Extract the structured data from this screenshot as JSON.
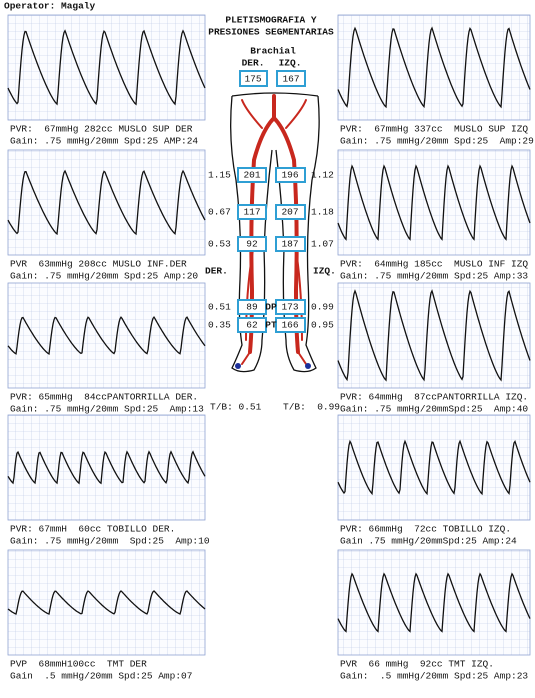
{
  "operator": "Operator: Magaly",
  "title": {
    "line1": "PLETISMOGRAFIA Y",
    "line2": "PRESIONES SEGMENTARIAS"
  },
  "brachial": {
    "label": "Brachial",
    "der_label": "DER.",
    "izq_label": "IZQ.",
    "der": "175",
    "izq": "167"
  },
  "pressures": [
    {
      "left_index": "1.15",
      "der": "201",
      "izq": "196",
      "right_index": "1.12"
    },
    {
      "left_index": "0.67",
      "der": "117",
      "izq": "207",
      "right_index": "1.18"
    },
    {
      "left_index": "0.53",
      "der": "92",
      "izq": "187",
      "right_index": "1.07"
    },
    {
      "left_index": "0.51",
      "der": "89",
      "mid": "DP",
      "izq": "173",
      "right_index": "0.99"
    },
    {
      "left_index": "0.35",
      "der": "62",
      "mid": "PT",
      "izq": "166",
      "right_index": "0.95"
    }
  ],
  "side_labels": {
    "der": "DER.",
    "izq": "IZQ."
  },
  "tb": {
    "left": "T/B: 0.51",
    "right": "T/B:  0.99"
  },
  "panels": {
    "left": [
      {
        "line1": "PVR:  67mmHg 282cc MUSLO SUP DER",
        "line2": "Gain: .75 mmHg/20mm Spd:25 AMP:24"
      },
      {
        "line1": "PVR  63mmHg 208cc MUSLO INF.DER",
        "line2": "Gain: .75 mmHg/20mm Spd:25 Amp:20"
      },
      {
        "line1": "PVR: 65mmHg  84ccPANTORRILLA DER.",
        "line2": "Gain: .75 mmHg/20mm Spd:25  Amp:13"
      },
      {
        "line1": "PVR: 67mmH  60cc TOBILLO DER.",
        "line2": "Gain: .75 mmHg/20mm  Spd:25  Amp:10"
      },
      {
        "line1": "PVP  68mmH100cc  TMT DER",
        "line2": "Gain  .5 mmHg/20mm Spd:25 Amp:07"
      }
    ],
    "right": [
      {
        "line1": "PVR:  67mmHg 337cc  MUSLO SUP IZQ",
        "line2": "Gain: .75 mmHg/20mm Spd:25  Amp:29"
      },
      {
        "line1": "PVR:  64mmHg 185cc  MUSLO INF IZQ",
        "line2": "Gain: .75 mmHg/20mm Spd:25 Amp:33"
      },
      {
        "line1": "PVR: 64mmHg  87ccPANTORRILLA IZQ.",
        "line2": "Gain: .75 mmHg/20mmSpd:25  Amp:40"
      },
      {
        "line1": "PVR: 66mmHg  72cc TOBILLO IZQ.",
        "line2": "Gain .75 mmHg/20mmSpd:25 Amp:24"
      },
      {
        "line1": "PVR  66 mmHg  92cc TMT IZQ.",
        "line2": "Gain:  .5 mmHg/20mm Spd:25 Amp:23"
      }
    ]
  }
}
